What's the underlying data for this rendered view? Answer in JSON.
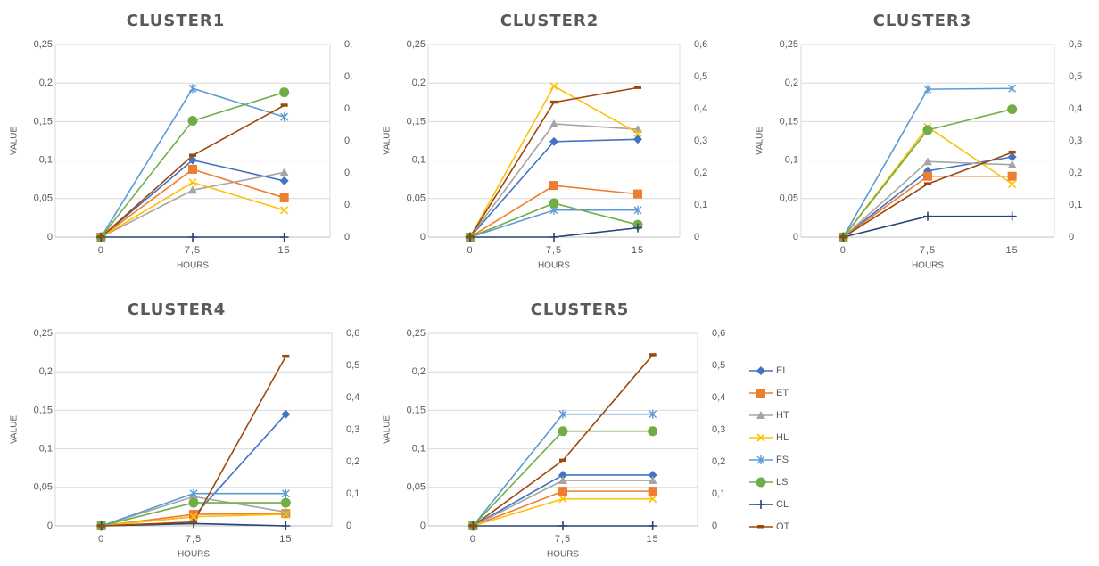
{
  "chart_data": [
    {
      "type": "line",
      "title": "CLUSTER1",
      "xlabel": "HOURS",
      "ylabel": "VALUE",
      "x": [
        "0",
        "7,5",
        "15"
      ],
      "ylim": [
        0,
        0.25
      ],
      "yticks": [
        "0",
        "0,05",
        "0,1",
        "0,15",
        "0,2",
        "0,25"
      ],
      "y2ticks": [
        "0",
        "0,",
        "0,",
        "0,",
        "0,",
        "0,",
        "0,"
      ],
      "series": [
        {
          "name": "EL",
          "values": [
            0,
            0.1,
            0.073
          ]
        },
        {
          "name": "ET",
          "values": [
            0,
            0.088,
            0.051
          ]
        },
        {
          "name": "HT",
          "values": [
            0,
            0.061,
            0.084
          ]
        },
        {
          "name": "HL",
          "values": [
            0,
            0.071,
            0.035
          ]
        },
        {
          "name": "FS",
          "values": [
            0,
            0.193,
            0.156
          ]
        },
        {
          "name": "LS",
          "values": [
            0,
            0.151,
            0.188
          ]
        },
        {
          "name": "CL",
          "values": [
            0,
            0,
            0
          ]
        },
        {
          "name": "OT",
          "values": [
            0,
            0.106,
            0.171
          ]
        }
      ]
    },
    {
      "type": "line",
      "title": "CLUSTER2",
      "xlabel": "HOURS",
      "ylabel": "VALUE",
      "x": [
        "0",
        "7,5",
        "15"
      ],
      "ylim": [
        0,
        0.25
      ],
      "yticks": [
        "0",
        "0,05",
        "0,1",
        "0,15",
        "0,2",
        "0,25"
      ],
      "y2ticks": [
        "0",
        "0,1",
        "0,2",
        "0,3",
        "0,4",
        "0,5",
        "0,6"
      ],
      "series": [
        {
          "name": "EL",
          "values": [
            0,
            0.124,
            0.127
          ]
        },
        {
          "name": "ET",
          "values": [
            0,
            0.067,
            0.056
          ]
        },
        {
          "name": "HT",
          "values": [
            0,
            0.147,
            0.14
          ]
        },
        {
          "name": "HL",
          "values": [
            0,
            0.196,
            0.135
          ]
        },
        {
          "name": "FS",
          "values": [
            0,
            0.035,
            0.035
          ]
        },
        {
          "name": "LS",
          "values": [
            0,
            0.044,
            0.016
          ]
        },
        {
          "name": "CL",
          "values": [
            0,
            0,
            0.012
          ]
        },
        {
          "name": "OT",
          "values": [
            0,
            0.175,
            0.194
          ]
        }
      ]
    },
    {
      "type": "line",
      "title": "CLUSTER3",
      "xlabel": "HOURS",
      "ylabel": "VALUE",
      "x": [
        "0",
        "7,5",
        "15"
      ],
      "ylim": [
        0,
        0.25
      ],
      "yticks": [
        "0",
        "0,05",
        "0,1",
        "0,15",
        "0,2",
        "0,25"
      ],
      "y2ticks": [
        "0",
        "0,1",
        "0,2",
        "0,3",
        "0,4",
        "0,5",
        "0,6"
      ],
      "series": [
        {
          "name": "EL",
          "values": [
            0,
            0.086,
            0.104
          ]
        },
        {
          "name": "ET",
          "values": [
            0,
            0.079,
            0.079
          ]
        },
        {
          "name": "HT",
          "values": [
            0,
            0.098,
            0.094
          ]
        },
        {
          "name": "HL",
          "values": [
            0,
            0.143,
            0.069
          ]
        },
        {
          "name": "FS",
          "values": [
            0,
            0.192,
            0.193
          ]
        },
        {
          "name": "LS",
          "values": [
            0,
            0.139,
            0.166
          ]
        },
        {
          "name": "CL",
          "values": [
            0,
            0.027,
            0.027
          ]
        },
        {
          "name": "OT",
          "values": [
            0,
            0.069,
            0.11
          ]
        }
      ]
    },
    {
      "type": "line",
      "title": "CLUSTER4",
      "xlabel": "HOURS",
      "ylabel": "VALUE",
      "x": [
        "0",
        "7,5",
        "15"
      ],
      "ylim": [
        0,
        0.25
      ],
      "yticks": [
        "0",
        "0,05",
        "0,1",
        "0,15",
        "0,2",
        "0,25"
      ],
      "y2ticks": [
        "0",
        "0,1",
        "0,2",
        "0,3",
        "0,4",
        "0,5",
        "0,6"
      ],
      "series": [
        {
          "name": "EL",
          "values": [
            0,
            0.012,
            0.145
          ]
        },
        {
          "name": "ET",
          "values": [
            0,
            0.015,
            0.016
          ]
        },
        {
          "name": "HT",
          "values": [
            0,
            0.038,
            0.018
          ]
        },
        {
          "name": "HL",
          "values": [
            0,
            0.012,
            0.015
          ]
        },
        {
          "name": "FS",
          "values": [
            0,
            0.042,
            0.042
          ]
        },
        {
          "name": "LS",
          "values": [
            0,
            0.03,
            0.03
          ]
        },
        {
          "name": "CL",
          "values": [
            0,
            0.003,
            0
          ]
        },
        {
          "name": "OT",
          "values": [
            0,
            0.005,
            0.22
          ]
        }
      ]
    },
    {
      "type": "line",
      "title": "CLUSTER5",
      "xlabel": "HOURS",
      "ylabel": "VALUE",
      "x": [
        "0",
        "7,5",
        "15"
      ],
      "ylim": [
        0,
        0.25
      ],
      "yticks": [
        "0",
        "0,05",
        "0,1",
        "0,15",
        "0,2",
        "0,25"
      ],
      "y2ticks": [
        "0",
        "0,1",
        "0,2",
        "0,3",
        "0,4",
        "0,5",
        "0,6"
      ],
      "series": [
        {
          "name": "EL",
          "values": [
            0,
            0.066,
            0.066
          ]
        },
        {
          "name": "ET",
          "values": [
            0,
            0.045,
            0.045
          ]
        },
        {
          "name": "HT",
          "values": [
            0,
            0.059,
            0.059
          ]
        },
        {
          "name": "HL",
          "values": [
            0,
            0.035,
            0.035
          ]
        },
        {
          "name": "FS",
          "values": [
            0,
            0.145,
            0.145
          ]
        },
        {
          "name": "LS",
          "values": [
            0,
            0.123,
            0.123
          ]
        },
        {
          "name": "CL",
          "values": [
            0,
            0,
            0
          ]
        },
        {
          "name": "OT",
          "values": [
            0,
            0.085,
            0.222
          ]
        }
      ]
    }
  ],
  "legend": {
    "placement": "right",
    "items": [
      {
        "name": "EL",
        "color": "#4472c4",
        "marker": "diamond"
      },
      {
        "name": "ET",
        "color": "#ed7d31",
        "marker": "square"
      },
      {
        "name": "HT",
        "color": "#a5a5a5",
        "marker": "triangle"
      },
      {
        "name": "HL",
        "color": "#ffc000",
        "marker": "x"
      },
      {
        "name": "FS",
        "color": "#5b9bd5",
        "marker": "star"
      },
      {
        "name": "LS",
        "color": "#70ad47",
        "marker": "circle"
      },
      {
        "name": "CL",
        "color": "#264478",
        "marker": "plus"
      },
      {
        "name": "OT",
        "color": "#9e480e",
        "marker": "dash"
      }
    ]
  }
}
